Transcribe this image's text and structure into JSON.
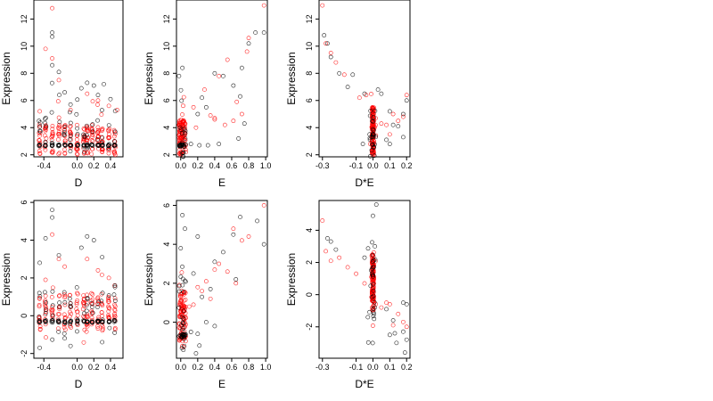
{
  "colors": {
    "series_a": "#000000",
    "series_b": "#ff0000",
    "axis": "#000000",
    "background": "#ffffff"
  },
  "chart_data": [
    {
      "type": "scatter",
      "panel": "top-D",
      "xlabel": "D",
      "ylabel": "Expression",
      "xlim": [
        -0.52,
        0.55
      ],
      "ylim": [
        1.85,
        13.4
      ],
      "xticks": [
        -0.4,
        0.0,
        0.2,
        0.4
      ],
      "xtick_labels": [
        "-0.4",
        "0.0",
        "0.2",
        "0.4"
      ],
      "yticks": [
        2,
        4,
        6,
        8,
        10,
        12
      ],
      "ytick_labels": [
        "2",
        "4",
        "6",
        "8",
        "10",
        "12"
      ],
      "gen": {
        "kind": "columns",
        "xs": [
          -0.45,
          -0.38,
          -0.3,
          -0.22,
          -0.15,
          -0.08,
          0.0,
          0.08,
          0.12,
          0.18,
          0.25,
          0.3,
          0.38,
          0.45
        ],
        "base": 2.7,
        "jit": 0.018,
        "sd": 1.5,
        "denseLo": 2.0,
        "denseHi": 4.2,
        "nDense": 11,
        "nSparse": 7,
        "seed": 11
      },
      "series": [
        {
          "color": "#000000",
          "points": [
            [
              -0.3,
              11.0
            ],
            [
              -0.3,
              10.7
            ],
            [
              -0.22,
              8.1
            ],
            [
              -0.3,
              8.6
            ],
            [
              0.12,
              7.3
            ],
            [
              0.2,
              7.1
            ],
            [
              0.32,
              7.2
            ],
            [
              -0.15,
              6.6
            ],
            [
              0.05,
              6.9
            ],
            [
              0.4,
              6.1
            ],
            [
              -0.08,
              5.7
            ],
            [
              0.25,
              6.4
            ]
          ]
        },
        {
          "color": "#ff0000",
          "points": [
            [
              -0.3,
              12.8
            ],
            [
              -0.38,
              9.8
            ],
            [
              -0.3,
              9.1
            ],
            [
              -0.22,
              7.5
            ],
            [
              0.12,
              6.5
            ],
            [
              -0.08,
              5.3
            ],
            [
              0.48,
              5.3
            ],
            [
              -0.45,
              5.2
            ],
            [
              0.25,
              6.0
            ],
            [
              0.38,
              5.6
            ]
          ]
        }
      ]
    },
    {
      "type": "scatter",
      "panel": "top-E",
      "xlabel": "E",
      "ylabel": "Expression",
      "xlim": [
        -0.05,
        1.02
      ],
      "ylim": [
        1.85,
        13.4
      ],
      "xticks": [
        0.0,
        0.2,
        0.4,
        0.6,
        0.8,
        1.0
      ],
      "xtick_labels": [
        "0.0",
        "0.2",
        "0.4",
        "0.6",
        "0.8",
        "1.0"
      ],
      "yticks": [
        2,
        4,
        6,
        8,
        10,
        12
      ],
      "ytick_labels": [
        "2",
        "4",
        "6",
        "8",
        "10",
        "12"
      ],
      "gen": {
        "kind": "cluster",
        "x0": -0.02,
        "x1": 0.06,
        "denseLo": 2.0,
        "denseHi": 4.6,
        "mean": 3.3,
        "sd": 1.4,
        "nDense": 90,
        "nSparse": 40,
        "base": 2.7,
        "seed": 23
      },
      "series": [
        {
          "color": "#000000",
          "points": [
            [
              0.88,
              11.0
            ],
            [
              0.98,
              11.0
            ],
            [
              0.8,
              10.2
            ],
            [
              0.72,
              8.4
            ],
            [
              0.4,
              8.0
            ],
            [
              0.5,
              7.8
            ],
            [
              0.62,
              7.1
            ],
            [
              0.7,
              6.3
            ],
            [
              0.25,
              6.2
            ],
            [
              0.3,
              5.5
            ],
            [
              0.2,
              5.0
            ],
            [
              0.75,
              4.3
            ],
            [
              0.68,
              3.2
            ],
            [
              0.12,
              2.8
            ],
            [
              0.22,
              2.7
            ],
            [
              0.32,
              2.7
            ],
            [
              0.45,
              2.8
            ],
            [
              -0.02,
              7.8
            ],
            [
              0.02,
              8.4
            ]
          ]
        },
        {
          "color": "#ff0000",
          "points": [
            [
              0.98,
              13.0
            ],
            [
              0.8,
              10.6
            ],
            [
              0.78,
              9.6
            ],
            [
              0.45,
              7.8
            ],
            [
              0.55,
              9.0
            ],
            [
              0.4,
              4.7
            ],
            [
              0.35,
              4.9
            ],
            [
              0.62,
              4.5
            ],
            [
              0.72,
              5.0
            ],
            [
              0.52,
              4.2
            ],
            [
              0.28,
              6.8
            ],
            [
              0.15,
              5.5
            ],
            [
              0.18,
              4.0
            ],
            [
              0.4,
              4.6
            ],
            [
              0.66,
              5.9
            ]
          ]
        }
      ]
    },
    {
      "type": "scatter",
      "panel": "top-DxE",
      "xlabel": "D*E",
      "ylabel": "Expression",
      "xlim": [
        -0.32,
        0.22
      ],
      "ylim": [
        1.85,
        13.4
      ],
      "xticks": [
        -0.3,
        -0.1,
        0.0,
        0.1,
        0.2
      ],
      "xtick_labels": [
        "-0.3",
        "-0.1",
        "0.0",
        "0.1",
        "0.2"
      ],
      "yticks": [
        2,
        4,
        6,
        8,
        10,
        12
      ],
      "ytick_labels": [
        "2",
        "4",
        "6",
        "8",
        "10",
        "12"
      ],
      "gen": {
        "kind": "spike",
        "x0": -0.006,
        "x1": 0.006,
        "denseLo": 2.0,
        "denseHi": 5.5,
        "mean": 3.5,
        "sd": 1.4,
        "nDense": 130,
        "nSparse": 45,
        "spreadX": 0.03,
        "seed": 37
      },
      "series": [
        {
          "color": "#000000",
          "points": [
            [
              -0.29,
              10.8
            ],
            [
              -0.27,
              10.2
            ],
            [
              -0.25,
              9.2
            ],
            [
              -0.2,
              8.0
            ],
            [
              -0.15,
              7.0
            ],
            [
              -0.12,
              7.9
            ],
            [
              -0.05,
              6.5
            ],
            [
              0.03,
              6.8
            ],
            [
              0.05,
              6.5
            ],
            [
              0.1,
              5.2
            ],
            [
              0.12,
              4.2
            ],
            [
              0.15,
              4.1
            ],
            [
              0.18,
              5.0
            ],
            [
              0.2,
              6.0
            ],
            [
              0.08,
              3.1
            ],
            [
              0.1,
              2.8
            ],
            [
              -0.06,
              2.8
            ],
            [
              0.18,
              3.3
            ]
          ]
        },
        {
          "color": "#ff0000",
          "points": [
            [
              -0.3,
              13.0
            ],
            [
              -0.28,
              10.2
            ],
            [
              -0.25,
              9.5
            ],
            [
              -0.22,
              8.8
            ],
            [
              -0.17,
              7.9
            ],
            [
              -0.08,
              6.2
            ],
            [
              -0.04,
              6.4
            ],
            [
              0.08,
              4.2
            ],
            [
              0.12,
              5.0
            ],
            [
              0.15,
              4.5
            ],
            [
              0.2,
              6.4
            ],
            [
              0.18,
              4.8
            ],
            [
              0.05,
              4.3
            ],
            [
              0.1,
              3.5
            ]
          ]
        }
      ]
    },
    {
      "type": "scatter",
      "panel": "bottom-D",
      "xlabel": "D",
      "ylabel": "Expression",
      "xlim": [
        -0.52,
        0.55
      ],
      "ylim": [
        -2.25,
        6.1
      ],
      "xticks": [
        -0.4,
        0.0,
        0.2,
        0.4
      ],
      "xtick_labels": [
        "-0.4",
        "0.0",
        "0.2",
        "0.4"
      ],
      "yticks": [
        -2,
        0,
        2,
        4,
        6
      ],
      "ytick_labels": [
        "-2",
        "0",
        "2",
        "4",
        "6"
      ],
      "gen": {
        "kind": "columns",
        "xs": [
          -0.45,
          -0.38,
          -0.3,
          -0.22,
          -0.15,
          -0.08,
          0.0,
          0.08,
          0.12,
          0.18,
          0.25,
          0.3,
          0.38,
          0.45
        ],
        "base": -0.3,
        "jit": 0.018,
        "sd": 1.1,
        "denseLo": -0.8,
        "denseHi": 1.2,
        "nDense": 10,
        "nSparse": 6,
        "seed": 53
      },
      "series": [
        {
          "color": "#000000",
          "points": [
            [
              -0.3,
              5.6
            ],
            [
              -0.3,
              5.2
            ],
            [
              -0.38,
              4.1
            ],
            [
              0.12,
              4.2
            ],
            [
              0.2,
              4.0
            ],
            [
              -0.22,
              3.2
            ],
            [
              0.3,
              3.1
            ],
            [
              -0.45,
              2.8
            ],
            [
              0.05,
              3.6
            ],
            [
              -0.45,
              -1.7
            ],
            [
              -0.08,
              -1.6
            ],
            [
              0.3,
              -1.4
            ],
            [
              -0.15,
              -1.2
            ],
            [
              0.45,
              -0.9
            ]
          ]
        },
        {
          "color": "#ff0000",
          "points": [
            [
              -0.3,
              4.3
            ],
            [
              -0.22,
              3.0
            ],
            [
              -0.15,
              2.6
            ],
            [
              0.12,
              3.0
            ],
            [
              0.25,
              2.4
            ],
            [
              0.38,
              2.0
            ],
            [
              -0.38,
              1.9
            ],
            [
              0.45,
              1.6
            ]
          ]
        }
      ]
    },
    {
      "type": "scatter",
      "panel": "bottom-E",
      "xlabel": "E",
      "ylabel": "Expression",
      "xlim": [
        -0.05,
        1.02
      ],
      "ylim": [
        -1.85,
        6.25
      ],
      "xticks": [
        0.0,
        0.2,
        0.4,
        0.6,
        0.8,
        1.0
      ],
      "xtick_labels": [
        "0.0",
        "0.2",
        "0.4",
        "0.6",
        "0.8",
        "1.0"
      ],
      "yticks": [
        0,
        2,
        4,
        6
      ],
      "ytick_labels": [
        "0",
        "2",
        "4",
        "6"
      ],
      "gen": {
        "kind": "cluster",
        "x0": -0.02,
        "x1": 0.06,
        "denseLo": -1.0,
        "denseHi": 1.6,
        "mean": 0.2,
        "sd": 1.3,
        "nDense": 90,
        "nSparse": 40,
        "base": -0.7,
        "seed": 71
      },
      "series": [
        {
          "color": "#000000",
          "points": [
            [
              0.7,
              5.4
            ],
            [
              0.9,
              5.2
            ],
            [
              0.98,
              4.0
            ],
            [
              0.62,
              4.5
            ],
            [
              0.5,
              3.6
            ],
            [
              0.4,
              3.1
            ],
            [
              0.2,
              4.4
            ],
            [
              0.15,
              2.5
            ],
            [
              0.25,
              1.3
            ],
            [
              0.35,
              1.7
            ],
            [
              0.65,
              2.2
            ],
            [
              0.3,
              0.0
            ],
            [
              0.2,
              -0.6
            ],
            [
              0.22,
              -1.2
            ],
            [
              0.12,
              -0.5
            ],
            [
              0.4,
              -0.2
            ],
            [
              0.18,
              -1.6
            ],
            [
              0.02,
              5.5
            ],
            [
              0.05,
              4.8
            ],
            [
              0.0,
              3.8
            ]
          ]
        },
        {
          "color": "#ff0000",
          "points": [
            [
              0.98,
              6.0
            ],
            [
              0.8,
              4.4
            ],
            [
              0.72,
              4.2
            ],
            [
              0.62,
              4.8
            ],
            [
              0.45,
              3.0
            ],
            [
              0.4,
              2.7
            ],
            [
              0.55,
              2.6
            ],
            [
              0.3,
              2.1
            ],
            [
              0.25,
              1.6
            ],
            [
              0.35,
              1.2
            ],
            [
              0.2,
              1.8
            ],
            [
              0.15,
              0.9
            ],
            [
              0.1,
              0.8
            ],
            [
              0.65,
              2.0
            ]
          ]
        }
      ]
    },
    {
      "type": "scatter",
      "panel": "bottom-DxE",
      "xlabel": "D*E",
      "ylabel": "Expression",
      "xlim": [
        -0.32,
        0.22
      ],
      "ylim": [
        -3.95,
        5.85
      ],
      "xticks": [
        -0.3,
        -0.1,
        0.0,
        0.1,
        0.2
      ],
      "xtick_labels": [
        "-0.3",
        "-0.1",
        "0.0",
        "0.1",
        "0.2"
      ],
      "yticks": [
        -2,
        0,
        2,
        4
      ],
      "ytick_labels": [
        "-2",
        "0",
        "2",
        "4"
      ],
      "gen": {
        "kind": "spike",
        "x0": -0.006,
        "x1": 0.006,
        "denseLo": -1.0,
        "denseHi": 2.5,
        "mean": 0.5,
        "sd": 1.4,
        "nDense": 130,
        "nSparse": 45,
        "spreadX": 0.03,
        "seed": 89
      },
      "series": [
        {
          "color": "#000000",
          "points": [
            [
              -0.27,
              3.5
            ],
            [
              -0.25,
              3.3
            ],
            [
              -0.22,
              2.8
            ],
            [
              -0.05,
              2.3
            ],
            [
              0.02,
              5.6
            ],
            [
              0.0,
              4.9
            ],
            [
              -0.03,
              -1.4
            ],
            [
              0.08,
              -0.9
            ],
            [
              0.12,
              -1.6
            ],
            [
              0.13,
              -2.4
            ],
            [
              0.18,
              -2.3
            ],
            [
              0.2,
              -2.8
            ],
            [
              0.19,
              -3.6
            ],
            [
              0.14,
              -3.0
            ],
            [
              0.1,
              -2.5
            ],
            [
              0.18,
              -0.5
            ],
            [
              0.2,
              -0.6
            ]
          ]
        },
        {
          "color": "#ff0000",
          "points": [
            [
              -0.3,
              4.6
            ],
            [
              -0.28,
              2.7
            ],
            [
              -0.25,
              2.1
            ],
            [
              -0.2,
              2.3
            ],
            [
              -0.15,
              1.7
            ],
            [
              -0.1,
              1.3
            ],
            [
              -0.05,
              0.7
            ],
            [
              0.05,
              -0.8
            ],
            [
              0.1,
              -0.6
            ],
            [
              0.15,
              -1.2
            ],
            [
              0.18,
              -1.7
            ],
            [
              0.2,
              -2.0
            ],
            [
              0.12,
              -1.9
            ],
            [
              0.08,
              -0.5
            ]
          ]
        }
      ]
    }
  ]
}
